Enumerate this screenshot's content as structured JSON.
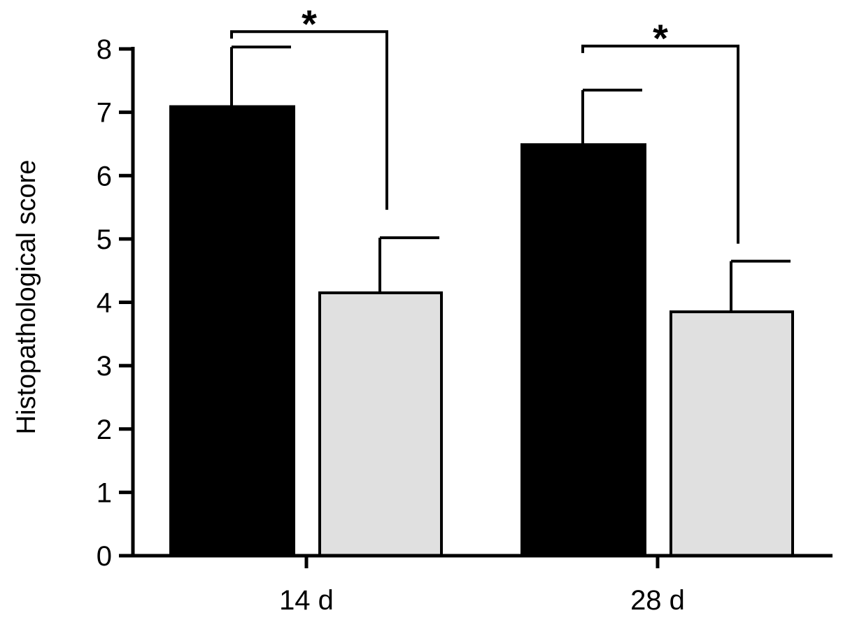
{
  "chart_data": {
    "type": "bar",
    "title": "",
    "xlabel": "",
    "ylabel": "Histopathological score",
    "ylim": [
      0,
      8
    ],
    "yticks": [
      "0",
      "1",
      "2",
      "3",
      "4",
      "5",
      "6",
      "7",
      "8"
    ],
    "categories": [
      "14 d",
      "28 d"
    ],
    "series": [
      {
        "values": [
          7.1,
          6.5
        ],
        "errors": [
          0.93,
          0.85
        ],
        "color": "#000000"
      },
      {
        "values": [
          4.15,
          3.85
        ],
        "errors": [
          0.87,
          0.8
        ],
        "color": "#e0e0e0"
      }
    ],
    "significance": [
      "*",
      "*"
    ],
    "grid": false,
    "legend": "none"
  }
}
